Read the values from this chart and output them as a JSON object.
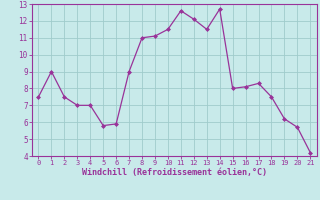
{
  "x": [
    0,
    1,
    2,
    3,
    4,
    5,
    6,
    7,
    8,
    9,
    10,
    11,
    12,
    13,
    14,
    15,
    16,
    17,
    18,
    19,
    20,
    21
  ],
  "y": [
    7.5,
    9.0,
    7.5,
    7.0,
    7.0,
    5.8,
    5.9,
    9.0,
    11.0,
    11.1,
    11.5,
    12.6,
    12.1,
    11.5,
    12.7,
    8.0,
    8.1,
    8.3,
    7.5,
    6.2,
    5.7,
    4.2
  ],
  "line_color": "#993399",
  "marker_color": "#993399",
  "bg_color": "#c8eaea",
  "grid_color": "#a0cccc",
  "xlabel": "Windchill (Refroidissement éolien,°C)",
  "xlabel_color": "#993399",
  "tick_color": "#993399",
  "spine_color": "#993399",
  "ylim": [
    4,
    13
  ],
  "xlim": [
    -0.5,
    21.5
  ],
  "yticks": [
    4,
    5,
    6,
    7,
    8,
    9,
    10,
    11,
    12,
    13
  ],
  "xticks": [
    0,
    1,
    2,
    3,
    4,
    5,
    6,
    7,
    8,
    9,
    10,
    11,
    12,
    13,
    14,
    15,
    16,
    17,
    18,
    19,
    20,
    21
  ],
  "figsize": [
    3.2,
    2.0
  ],
  "dpi": 100
}
